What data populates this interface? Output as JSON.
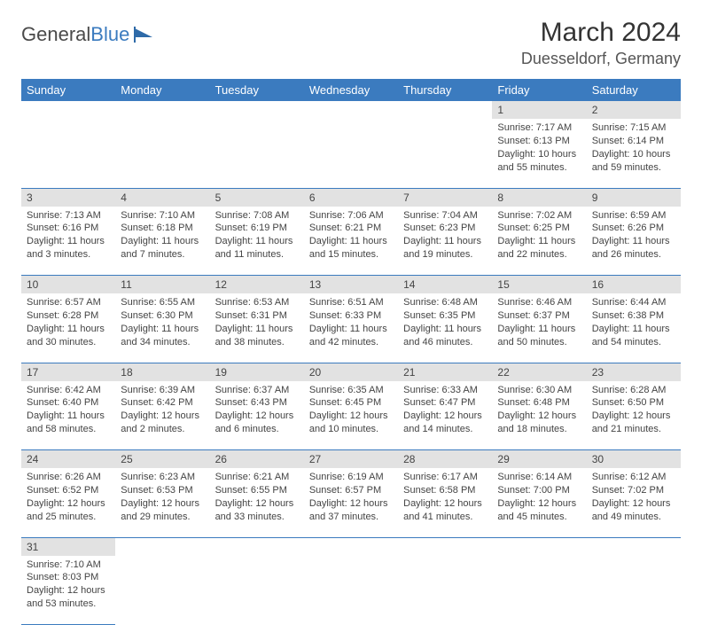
{
  "logo": {
    "text1": "General",
    "text2": "Blue"
  },
  "title": "March 2024",
  "location": "Duesseldorf, Germany",
  "colors": {
    "header_bg": "#3b7bbf",
    "header_text": "#ffffff",
    "daynum_bg": "#e2e2e2",
    "border": "#3b7bbf",
    "text": "#444444"
  },
  "day_headers": [
    "Sunday",
    "Monday",
    "Tuesday",
    "Wednesday",
    "Thursday",
    "Friday",
    "Saturday"
  ],
  "weeks": [
    [
      {
        "n": "",
        "sr": "",
        "ss": "",
        "dl": ""
      },
      {
        "n": "",
        "sr": "",
        "ss": "",
        "dl": ""
      },
      {
        "n": "",
        "sr": "",
        "ss": "",
        "dl": ""
      },
      {
        "n": "",
        "sr": "",
        "ss": "",
        "dl": ""
      },
      {
        "n": "",
        "sr": "",
        "ss": "",
        "dl": ""
      },
      {
        "n": "1",
        "sr": "Sunrise: 7:17 AM",
        "ss": "Sunset: 6:13 PM",
        "dl": "Daylight: 10 hours and 55 minutes."
      },
      {
        "n": "2",
        "sr": "Sunrise: 7:15 AM",
        "ss": "Sunset: 6:14 PM",
        "dl": "Daylight: 10 hours and 59 minutes."
      }
    ],
    [
      {
        "n": "3",
        "sr": "Sunrise: 7:13 AM",
        "ss": "Sunset: 6:16 PM",
        "dl": "Daylight: 11 hours and 3 minutes."
      },
      {
        "n": "4",
        "sr": "Sunrise: 7:10 AM",
        "ss": "Sunset: 6:18 PM",
        "dl": "Daylight: 11 hours and 7 minutes."
      },
      {
        "n": "5",
        "sr": "Sunrise: 7:08 AM",
        "ss": "Sunset: 6:19 PM",
        "dl": "Daylight: 11 hours and 11 minutes."
      },
      {
        "n": "6",
        "sr": "Sunrise: 7:06 AM",
        "ss": "Sunset: 6:21 PM",
        "dl": "Daylight: 11 hours and 15 minutes."
      },
      {
        "n": "7",
        "sr": "Sunrise: 7:04 AM",
        "ss": "Sunset: 6:23 PM",
        "dl": "Daylight: 11 hours and 19 minutes."
      },
      {
        "n": "8",
        "sr": "Sunrise: 7:02 AM",
        "ss": "Sunset: 6:25 PM",
        "dl": "Daylight: 11 hours and 22 minutes."
      },
      {
        "n": "9",
        "sr": "Sunrise: 6:59 AM",
        "ss": "Sunset: 6:26 PM",
        "dl": "Daylight: 11 hours and 26 minutes."
      }
    ],
    [
      {
        "n": "10",
        "sr": "Sunrise: 6:57 AM",
        "ss": "Sunset: 6:28 PM",
        "dl": "Daylight: 11 hours and 30 minutes."
      },
      {
        "n": "11",
        "sr": "Sunrise: 6:55 AM",
        "ss": "Sunset: 6:30 PM",
        "dl": "Daylight: 11 hours and 34 minutes."
      },
      {
        "n": "12",
        "sr": "Sunrise: 6:53 AM",
        "ss": "Sunset: 6:31 PM",
        "dl": "Daylight: 11 hours and 38 minutes."
      },
      {
        "n": "13",
        "sr": "Sunrise: 6:51 AM",
        "ss": "Sunset: 6:33 PM",
        "dl": "Daylight: 11 hours and 42 minutes."
      },
      {
        "n": "14",
        "sr": "Sunrise: 6:48 AM",
        "ss": "Sunset: 6:35 PM",
        "dl": "Daylight: 11 hours and 46 minutes."
      },
      {
        "n": "15",
        "sr": "Sunrise: 6:46 AM",
        "ss": "Sunset: 6:37 PM",
        "dl": "Daylight: 11 hours and 50 minutes."
      },
      {
        "n": "16",
        "sr": "Sunrise: 6:44 AM",
        "ss": "Sunset: 6:38 PM",
        "dl": "Daylight: 11 hours and 54 minutes."
      }
    ],
    [
      {
        "n": "17",
        "sr": "Sunrise: 6:42 AM",
        "ss": "Sunset: 6:40 PM",
        "dl": "Daylight: 11 hours and 58 minutes."
      },
      {
        "n": "18",
        "sr": "Sunrise: 6:39 AM",
        "ss": "Sunset: 6:42 PM",
        "dl": "Daylight: 12 hours and 2 minutes."
      },
      {
        "n": "19",
        "sr": "Sunrise: 6:37 AM",
        "ss": "Sunset: 6:43 PM",
        "dl": "Daylight: 12 hours and 6 minutes."
      },
      {
        "n": "20",
        "sr": "Sunrise: 6:35 AM",
        "ss": "Sunset: 6:45 PM",
        "dl": "Daylight: 12 hours and 10 minutes."
      },
      {
        "n": "21",
        "sr": "Sunrise: 6:33 AM",
        "ss": "Sunset: 6:47 PM",
        "dl": "Daylight: 12 hours and 14 minutes."
      },
      {
        "n": "22",
        "sr": "Sunrise: 6:30 AM",
        "ss": "Sunset: 6:48 PM",
        "dl": "Daylight: 12 hours and 18 minutes."
      },
      {
        "n": "23",
        "sr": "Sunrise: 6:28 AM",
        "ss": "Sunset: 6:50 PM",
        "dl": "Daylight: 12 hours and 21 minutes."
      }
    ],
    [
      {
        "n": "24",
        "sr": "Sunrise: 6:26 AM",
        "ss": "Sunset: 6:52 PM",
        "dl": "Daylight: 12 hours and 25 minutes."
      },
      {
        "n": "25",
        "sr": "Sunrise: 6:23 AM",
        "ss": "Sunset: 6:53 PM",
        "dl": "Daylight: 12 hours and 29 minutes."
      },
      {
        "n": "26",
        "sr": "Sunrise: 6:21 AM",
        "ss": "Sunset: 6:55 PM",
        "dl": "Daylight: 12 hours and 33 minutes."
      },
      {
        "n": "27",
        "sr": "Sunrise: 6:19 AM",
        "ss": "Sunset: 6:57 PM",
        "dl": "Daylight: 12 hours and 37 minutes."
      },
      {
        "n": "28",
        "sr": "Sunrise: 6:17 AM",
        "ss": "Sunset: 6:58 PM",
        "dl": "Daylight: 12 hours and 41 minutes."
      },
      {
        "n": "29",
        "sr": "Sunrise: 6:14 AM",
        "ss": "Sunset: 7:00 PM",
        "dl": "Daylight: 12 hours and 45 minutes."
      },
      {
        "n": "30",
        "sr": "Sunrise: 6:12 AM",
        "ss": "Sunset: 7:02 PM",
        "dl": "Daylight: 12 hours and 49 minutes."
      }
    ],
    [
      {
        "n": "31",
        "sr": "Sunrise: 7:10 AM",
        "ss": "Sunset: 8:03 PM",
        "dl": "Daylight: 12 hours and 53 minutes."
      },
      {
        "n": "",
        "sr": "",
        "ss": "",
        "dl": ""
      },
      {
        "n": "",
        "sr": "",
        "ss": "",
        "dl": ""
      },
      {
        "n": "",
        "sr": "",
        "ss": "",
        "dl": ""
      },
      {
        "n": "",
        "sr": "",
        "ss": "",
        "dl": ""
      },
      {
        "n": "",
        "sr": "",
        "ss": "",
        "dl": ""
      },
      {
        "n": "",
        "sr": "",
        "ss": "",
        "dl": ""
      }
    ]
  ]
}
